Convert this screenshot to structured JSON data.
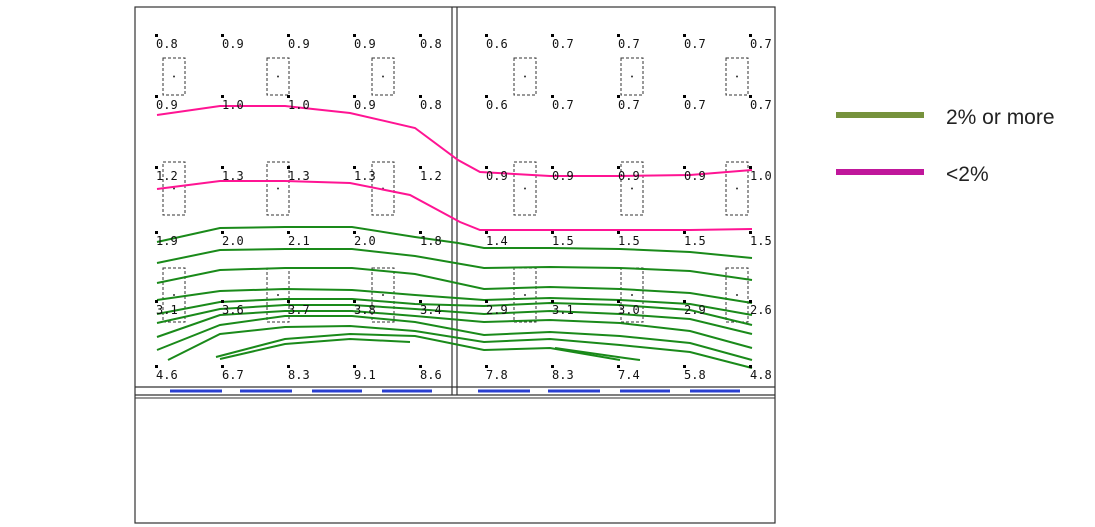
{
  "left_room": {
    "rows": [
      [
        "0.8",
        "0.9",
        "0.9",
        "0.9",
        "0.8"
      ],
      [
        "0.9",
        "1.0",
        "1.0",
        "0.9",
        "0.8"
      ],
      [
        "1.2",
        "1.3",
        "1.3",
        "1.3",
        "1.2"
      ],
      [
        "1.9",
        "2.0",
        "2.1",
        "2.0",
        "1.8"
      ],
      [
        "3.1",
        "3.6",
        "3.7",
        "3.8",
        "3.4"
      ],
      [
        "4.6",
        "6.7",
        "8.3",
        "9.1",
        "8.6"
      ]
    ]
  },
  "right_room": {
    "rows": [
      [
        "0.6",
        "0.7",
        "0.7",
        "0.7",
        "0.7"
      ],
      [
        "0.6",
        "0.7",
        "0.7",
        "0.7",
        "0.7"
      ],
      [
        "0.9",
        "0.9",
        "0.9",
        "0.9",
        "1.0"
      ],
      [
        "1.4",
        "1.5",
        "1.5",
        "1.5",
        "1.5"
      ],
      [
        "2.9",
        "3.1",
        "3.0",
        "2.9",
        "2.6"
      ],
      [
        "7.8",
        "8.3",
        "7.4",
        "5.8",
        "4.8"
      ]
    ]
  },
  "legend": [
    {
      "label": "2% or more",
      "color": "#76923c"
    },
    {
      "label": "<2%",
      "color": "#c0179b"
    }
  ],
  "colors": {
    "contour_ge2": "#1a8a1a",
    "contour_lt2": "#ff1493",
    "window": "#2a3fd0",
    "wall": "#333333"
  }
}
